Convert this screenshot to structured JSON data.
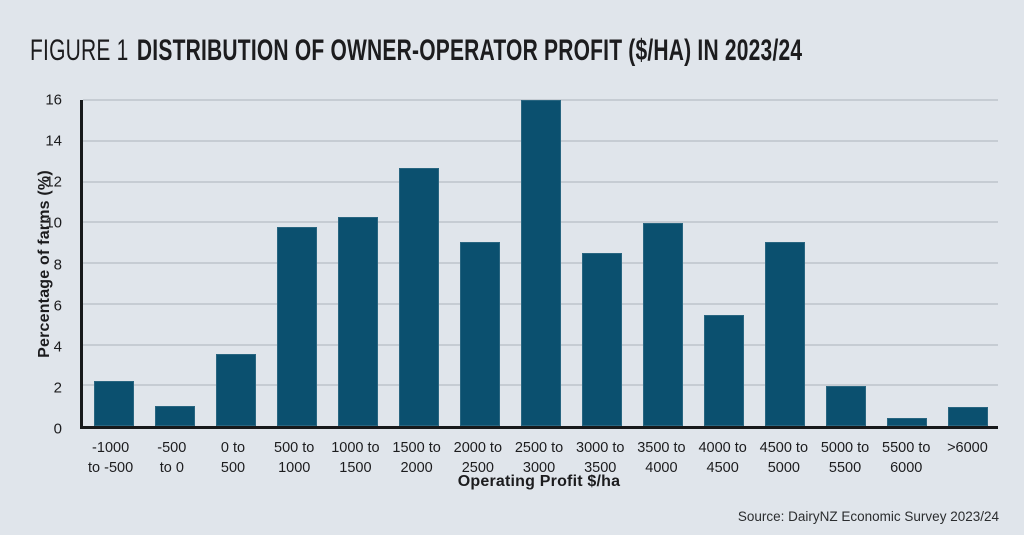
{
  "figure": {
    "label": "FIGURE 1",
    "title": "DISTRIBUTION OF OWNER-OPERATOR PROFIT ($/HA) IN 2023/24"
  },
  "source": "Source: DairyNZ Economic Survey 2023/24",
  "colors": {
    "background": "#e0e5eb",
    "bar": "#0b506f",
    "gridline": "#c6ccd3",
    "axis": "#17191b",
    "text": "#1c1c1e"
  },
  "chart_data": {
    "type": "bar",
    "title": "Distribution of owner-operator profit ($/ha) in 2023/24",
    "xlabel": "Operating Profit $/ha",
    "ylabel": "Percentage of farms (%)",
    "ylim": [
      0,
      16
    ],
    "ytick_step": 2,
    "grid": true,
    "legend": "none",
    "categories": [
      "-1000 to -500",
      "-500 to 0",
      "0 to 500",
      "500 to 1000",
      "1000 to 1500",
      "1500 to 2000",
      "2000 to 2500",
      "2500 to 3000",
      "3000 to 3500",
      "3500 to 4000",
      "4000 to 4500",
      "4500 to 5000",
      "5000 to 5500",
      "5500 to 6000",
      ">6000"
    ],
    "category_lines": [
      [
        "-1000",
        "to -500"
      ],
      [
        "-500",
        "to 0"
      ],
      [
        "0 to",
        "500"
      ],
      [
        "500 to",
        "1000"
      ],
      [
        "1000 to",
        "1500"
      ],
      [
        "1500 to",
        "2000"
      ],
      [
        "2000 to",
        "2500"
      ],
      [
        "2500 to",
        "3000"
      ],
      [
        "3000 to",
        "3500"
      ],
      [
        "3500 to",
        "4000"
      ],
      [
        "4000 to",
        "4500"
      ],
      [
        "4500 to",
        "5000"
      ],
      [
        "5000 to",
        "5500"
      ],
      [
        "5500 to",
        "6000"
      ],
      [
        ">6000"
      ]
    ],
    "values": [
      2.2,
      1.0,
      3.55,
      9.75,
      10.25,
      12.65,
      9.05,
      16.0,
      8.5,
      9.95,
      5.45,
      9.05,
      1.95,
      0.4,
      0.95
    ]
  }
}
